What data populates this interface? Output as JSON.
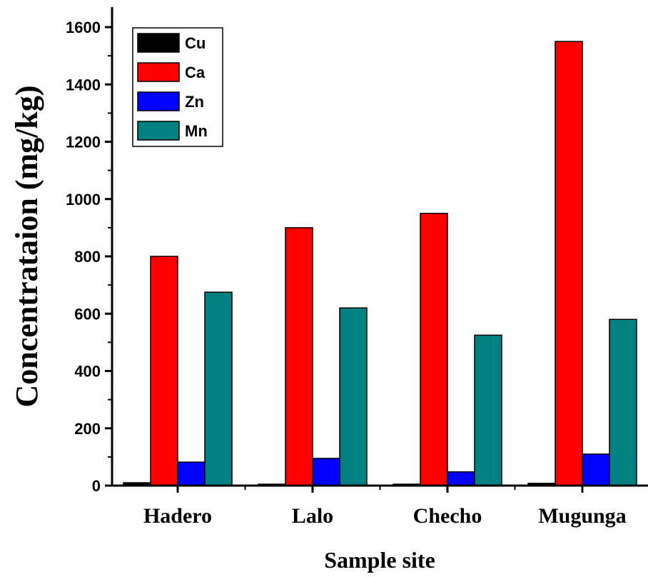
{
  "chart_data": {
    "type": "bar",
    "xlabel": "Sample site",
    "ylabel": "Concentrataion (mg/kg)",
    "categories": [
      "Hadero",
      "Lalo",
      "Checho",
      "Mugunga"
    ],
    "ylim": [
      0,
      1600
    ],
    "yticks": [
      "0",
      "200",
      "400",
      "600",
      "800",
      "1000",
      "1200",
      "1400",
      "1600"
    ],
    "legend_position": "top-left",
    "series": [
      {
        "name": "Cu",
        "color": "#000000",
        "values": [
          10,
          5,
          5,
          8
        ]
      },
      {
        "name": "Ca",
        "color": "#ff0000",
        "values": [
          800,
          900,
          950,
          1550
        ]
      },
      {
        "name": "Zn",
        "color": "#0000ff",
        "values": [
          82,
          95,
          48,
          110
        ]
      },
      {
        "name": "Mn",
        "color": "#008080",
        "values": [
          675,
          620,
          525,
          580
        ]
      }
    ]
  }
}
